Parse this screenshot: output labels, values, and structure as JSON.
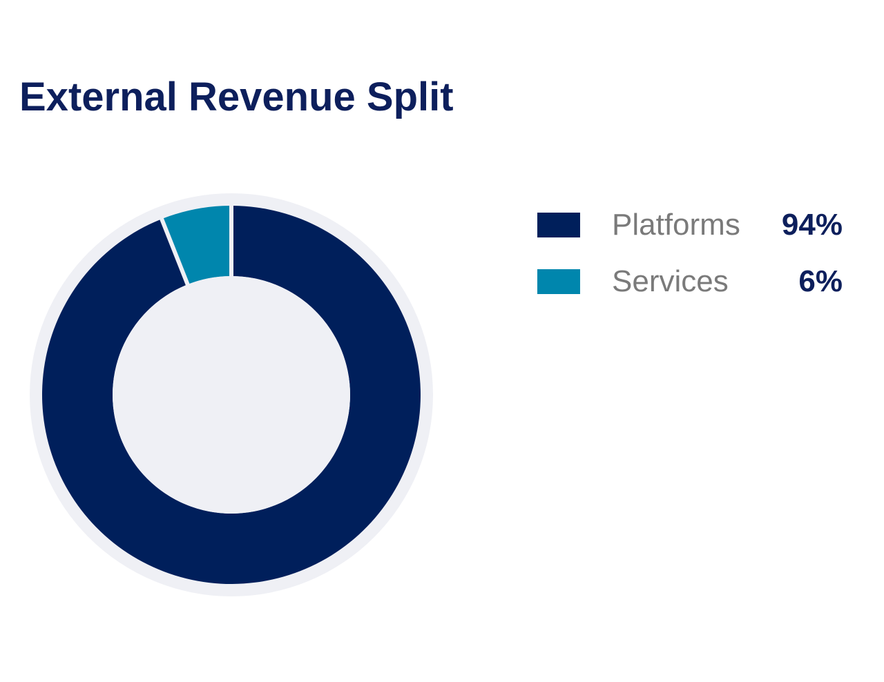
{
  "chart_data": {
    "type": "pie",
    "title": "External Revenue Split",
    "categories": [
      "Platforms",
      "Services"
    ],
    "values": [
      94,
      6
    ],
    "value_labels": [
      "94%",
      "6%"
    ],
    "unit": "%",
    "donut": true,
    "legend_position": "right",
    "colors": {
      "Platforms": "#001f5b",
      "Services": "#0086ad",
      "background_ring": "#eff0f5",
      "title": "#0d1f5c",
      "legend_label": "#7a7a7a",
      "legend_value": "#0d1f5c"
    }
  }
}
